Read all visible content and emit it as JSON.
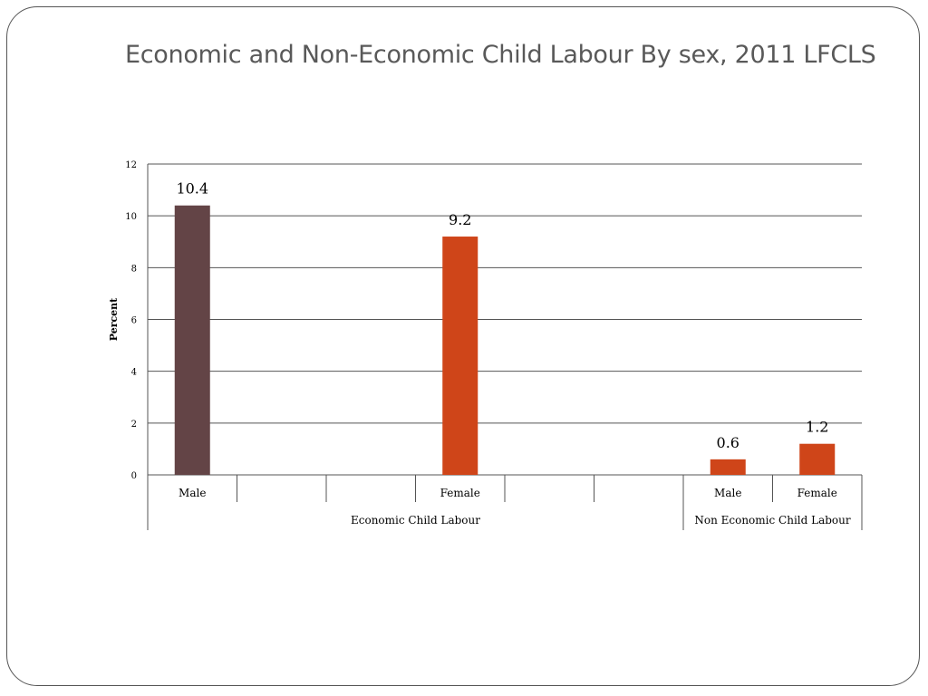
{
  "slide": {
    "title": "Economic and Non-Economic Child Labour By sex, 2011 LFCLS"
  },
  "chart_data": {
    "type": "bar",
    "title": "",
    "ylabel": "Percent",
    "xlabel": "",
    "ylim": [
      0,
      12
    ],
    "yticks": [
      0,
      2,
      4,
      6,
      8,
      10,
      12
    ],
    "grid": true,
    "legend": "none",
    "categories": [
      "Male",
      "",
      "",
      "Female",
      "",
      "",
      "Male",
      "Female"
    ],
    "groups": [
      {
        "label": "Economic Child Labour",
        "span": 6
      },
      {
        "label": "Non Economic Child Labour",
        "span": 2
      }
    ],
    "values": [
      10.4,
      null,
      null,
      9.2,
      null,
      null,
      0.6,
      1.2
    ],
    "data_labels": [
      "10.4",
      "",
      "",
      "9.2",
      "",
      "",
      "0.6",
      "1.2"
    ],
    "colors": [
      "#634446",
      null,
      null,
      "#cf4519",
      null,
      null,
      "#cf4519",
      "#cf4519"
    ]
  }
}
